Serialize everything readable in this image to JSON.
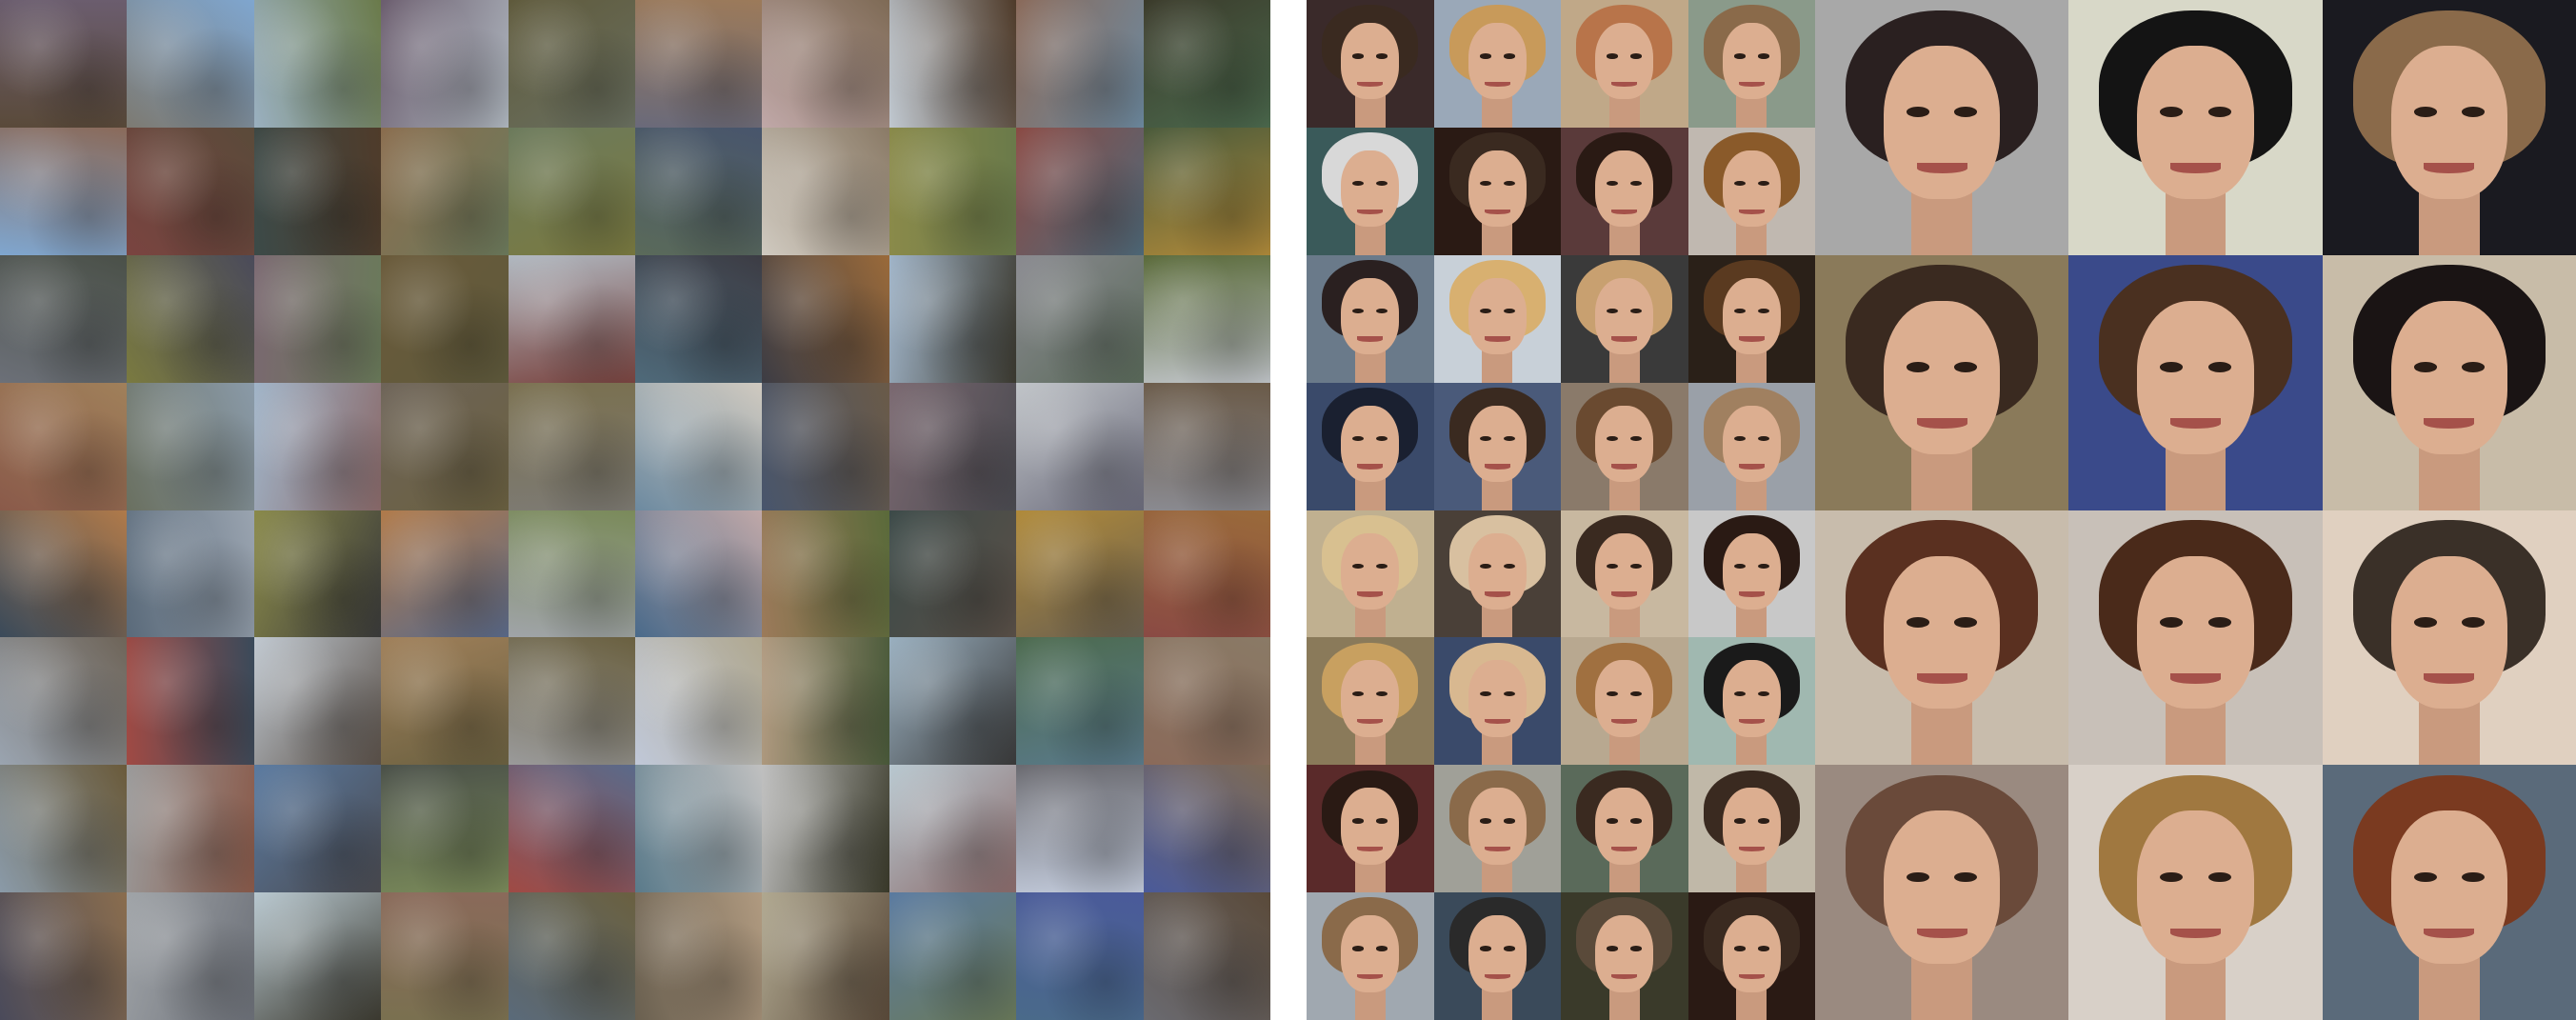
{
  "figure": {
    "panels": [
      {
        "id": "cifar",
        "rows": 8,
        "cols": 10,
        "palette": [
          "#5a4a3a",
          "#7d7a72",
          "#9ab0c0",
          "#6b5d6e",
          "#5f5a3c",
          "#9c7a5a",
          "#7e6a55",
          "#4f3b2a",
          "#6d8aa0",
          "#4c6a4e",
          "#7fa6cf",
          "#7a4440",
          "#3c4a48",
          "#8a6d4e",
          "#6c7a5c",
          "#48556c",
          "#8a7a66",
          "#6a7a4a",
          "#4f6a7a",
          "#b08a3a",
          "#6c7078",
          "#7a7a40",
          "#7a6870",
          "#6a5a3a",
          "#b0b8c0",
          "#3c3c44",
          "#9a6a3a",
          "#3c3a30",
          "#5a6a5a",
          "#c0c4c8",
          "#8a5a4a",
          "#6a7060",
          "#a0b4c8",
          "#6e6458",
          "#7a7050",
          "#d0cac0",
          "#6a5a48",
          "#4a4a50",
          "#6a6a7a",
          "#8a8a90",
          "#3a4a5a",
          "#5a6a7a",
          "#8a8a4a",
          "#b07a4a",
          "#7a8a5a",
          "#c0a8a8",
          "#5a6a3a",
          "#5a5048",
          "#6a6050",
          "#8a4a44",
          "#9aa4b0",
          "#a04a44",
          "#c0c8d0",
          "#a0805a",
          "#6a6040",
          "#b0a890",
          "#4a5a3a",
          "#3a3a3a",
          "#5a7a8a",
          "#8a6a5a",
          "#8a9aa8",
          "#9a9a9a",
          "#5a7aa0",
          "#4a5048",
          "#5a6a8a",
          "#c0c0c0",
          "#3a3a2a",
          "#8a6a6a",
          "#c0c8d8",
          "#4a5a9a",
          "#4a4a5a",
          "#a0a4a8",
          "#b8c8d0",
          "#8a6a5a",
          "#6a6040",
          "#b09a80",
          "#5a4a3a",
          "#6a7a5a",
          "#4a6a8a",
          "#6a6a70"
        ]
      },
      {
        "id": "faces-small",
        "rows": 8,
        "cols": 4,
        "backgrounds": [
          "#3a2a2a",
          "#9aa8b8",
          "#c0a888",
          "#8a9a8a",
          "#3a5a5a",
          "#2a1a14",
          "#5a3a3a",
          "#c0b8b0",
          "#6a7a8a",
          "#c8d0d8",
          "#3a3a3a",
          "#2a2018",
          "#3a4a6a",
          "#4a5a7a",
          "#8a7a6a",
          "#9aa0a8",
          "#c0b090",
          "#4a4038",
          "#c8b8a0",
          "#c8c8c8",
          "#8a7a5a",
          "#3a4a6a",
          "#b8a890",
          "#a0b8b0",
          "#5a2a2a",
          "#a0a098",
          "#5a6a5a",
          "#c0b8a8",
          "#a0a8b0",
          "#3a4a5a",
          "#3a3a2a",
          "#2a1a14"
        ],
        "hair": [
          "#3a2a20",
          "#c89a5a",
          "#b8744a",
          "#8a6a4a",
          "#d8d8d8",
          "#3a2a20",
          "#2a1a14",
          "#8a5a2a",
          "#2a2020",
          "#d8b070",
          "#c8a070",
          "#5a3a20",
          "#1a2030",
          "#3a2a20",
          "#6a4a30",
          "#a08060",
          "#d8c090",
          "#d8c0a0",
          "#3a2a20",
          "#2a1a14",
          "#c8a060",
          "#d8b890",
          "#a07040",
          "#1a1a1a",
          "#2a1a14",
          "#8a6a4a",
          "#3a2a20",
          "#3a2a20",
          "#8a6a4a",
          "#2a2a2a",
          "#5a4a3a",
          "#3a2a20"
        ]
      },
      {
        "id": "faces-large",
        "rows": 4,
        "cols": 3,
        "backgrounds": [
          "#a8a8a8",
          "#d8d8c8",
          "#1a1a20",
          "#8a7a5a",
          "#3a4a8a",
          "#c8bca8",
          "#c8bcac",
          "#c8c0b8",
          "#e0d0c0",
          "#9a8a80",
          "#d8d0c8",
          "#5a6a7a"
        ],
        "hair": [
          "#2a2020",
          "#141414",
          "#8a6a4a",
          "#3a2a20",
          "#4a3020",
          "#1a1414",
          "#5a3020",
          "#4a2a1a",
          "#3a3028",
          "#6a4a3a",
          "#a07840",
          "#7a3a20"
        ]
      }
    ]
  }
}
